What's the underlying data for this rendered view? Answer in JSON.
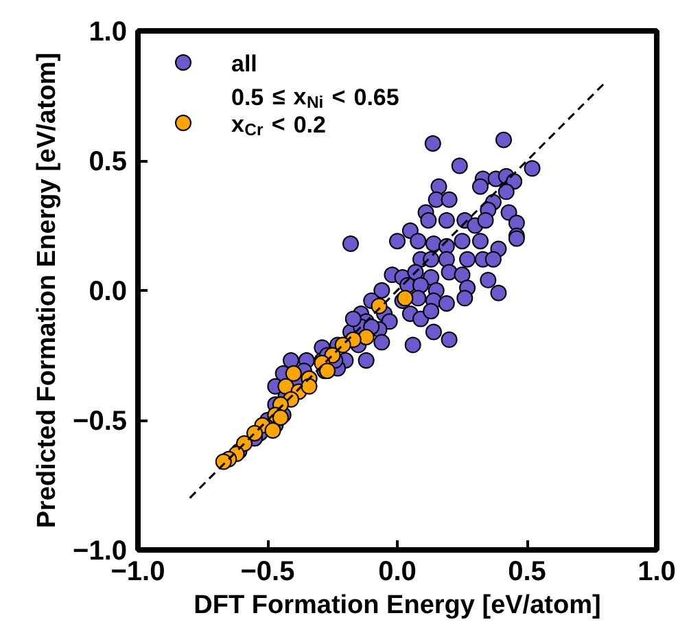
{
  "chart_data": {
    "type": "scatter",
    "xlabel": "DFT Formation Energy [eV/atom]",
    "ylabel": "Predicted Formation Energy [eV/atom]",
    "xlim": [
      -1,
      1
    ],
    "ylim": [
      -1,
      1
    ],
    "xticks": [
      {
        "value": -1,
        "label": "−1.0"
      },
      {
        "value": -0.5,
        "label": "−0.5"
      },
      {
        "value": 0,
        "label": "0.0"
      },
      {
        "value": 0.5,
        "label": "0.5"
      },
      {
        "value": 1,
        "label": "1.0"
      }
    ],
    "yticks": [
      {
        "value": -1,
        "label": "−1.0"
      },
      {
        "value": -0.5,
        "label": "−0.5"
      },
      {
        "value": 0,
        "label": "0.0"
      },
      {
        "value": 0.5,
        "label": "0.5"
      },
      {
        "value": 1,
        "label": "1.0"
      }
    ],
    "grid": false,
    "legend": "top left",
    "marker": "circle",
    "series": [
      {
        "name": "all",
        "color": "#6a5acd",
        "x": [
          0.137,
          0.41,
          0.24,
          0.52,
          0.33,
          0.38,
          0.42,
          0.45,
          0.16,
          0.32,
          0.42,
          0.15,
          0.2,
          0.37,
          0.11,
          0.35,
          0.43,
          0.12,
          0.19,
          0.26,
          0.3,
          0.34,
          0.05,
          0.46,
          0.46,
          -0.18,
          0.0,
          0.08,
          0.14,
          0.19,
          0.25,
          0.32,
          0.39,
          0.46,
          0.09,
          0.13,
          0.19,
          0.27,
          0.33,
          0.37,
          -0.02,
          0.02,
          0.07,
          0.13,
          0.2,
          0.25,
          0.35,
          -0.06,
          0.04,
          0.09,
          0.15,
          0.27,
          0.39,
          -0.1,
          0.02,
          0.08,
          0.14,
          0.19,
          0.26,
          -0.14,
          -0.05,
          0.05,
          0.09,
          0.13,
          -0.12,
          -0.03,
          -0.18,
          -0.14,
          -0.07,
          0.14,
          0.2,
          -0.29,
          -0.23,
          -0.15,
          -0.06,
          0.06,
          -0.41,
          -0.35,
          -0.29,
          -0.2,
          -0.12,
          -0.44,
          -0.36,
          -0.28,
          -0.23,
          -0.47,
          -0.38,
          -0.47,
          -0.44,
          -0.47,
          -0.53,
          -0.17,
          -0.1,
          -0.27,
          -0.24,
          -0.34,
          -0.43,
          -0.5,
          -0.55,
          -0.61
        ],
        "values": [
          0.566,
          0.58,
          0.48,
          0.47,
          0.43,
          0.43,
          0.44,
          0.42,
          0.4,
          0.4,
          0.38,
          0.35,
          0.35,
          0.34,
          0.3,
          0.31,
          0.3,
          0.27,
          0.27,
          0.27,
          0.25,
          0.27,
          0.23,
          0.26,
          0.21,
          0.18,
          0.19,
          0.19,
          0.18,
          0.17,
          0.19,
          0.19,
          0.16,
          0.2,
          0.12,
          0.12,
          0.12,
          0.12,
          0.12,
          0.12,
          0.06,
          0.05,
          0.07,
          0.05,
          0.07,
          0.06,
          0.04,
          0.0,
          0.02,
          0.02,
          0.0,
          0.01,
          -0.01,
          -0.04,
          -0.04,
          -0.03,
          -0.04,
          -0.05,
          -0.03,
          -0.09,
          -0.09,
          -0.09,
          -0.11,
          -0.08,
          -0.12,
          -0.12,
          -0.16,
          -0.14,
          -0.15,
          -0.16,
          -0.19,
          -0.22,
          -0.21,
          -0.21,
          -0.2,
          -0.21,
          -0.27,
          -0.27,
          -0.27,
          -0.27,
          -0.27,
          -0.32,
          -0.31,
          -0.31,
          -0.3,
          -0.37,
          -0.36,
          -0.44,
          -0.48,
          -0.52,
          -0.55,
          -0.11,
          -0.14,
          -0.25,
          -0.27,
          -0.34,
          -0.41,
          -0.5,
          -0.57,
          -0.62
        ]
      },
      {
        "name": "0.5 ≤ x$_{Ni}$ < 0.65\nx$_{Cr}$ < 0.2",
        "color": "#ffa500",
        "x": [
          0.03,
          -0.07,
          -0.12,
          -0.17,
          -0.21,
          -0.25,
          -0.29,
          -0.34,
          -0.4,
          -0.43,
          -0.38,
          -0.41,
          -0.45,
          -0.47,
          -0.52,
          -0.55,
          -0.59,
          -0.62,
          -0.65,
          -0.67,
          -0.45,
          -0.48,
          -0.34,
          -0.27
        ],
        "values": [
          -0.03,
          -0.06,
          -0.18,
          -0.19,
          -0.21,
          -0.25,
          -0.28,
          -0.34,
          -0.32,
          -0.37,
          -0.39,
          -0.42,
          -0.44,
          -0.48,
          -0.52,
          -0.55,
          -0.59,
          -0.63,
          -0.65,
          -0.66,
          -0.49,
          -0.54,
          -0.37,
          -0.31
        ]
      },
      {
        "type": "line",
        "color": "#000000",
        "line_style": "dashed",
        "marker": "none",
        "x": [
          -0.8,
          0.8
        ],
        "values": [
          -0.8,
          0.8
        ]
      }
    ]
  }
}
